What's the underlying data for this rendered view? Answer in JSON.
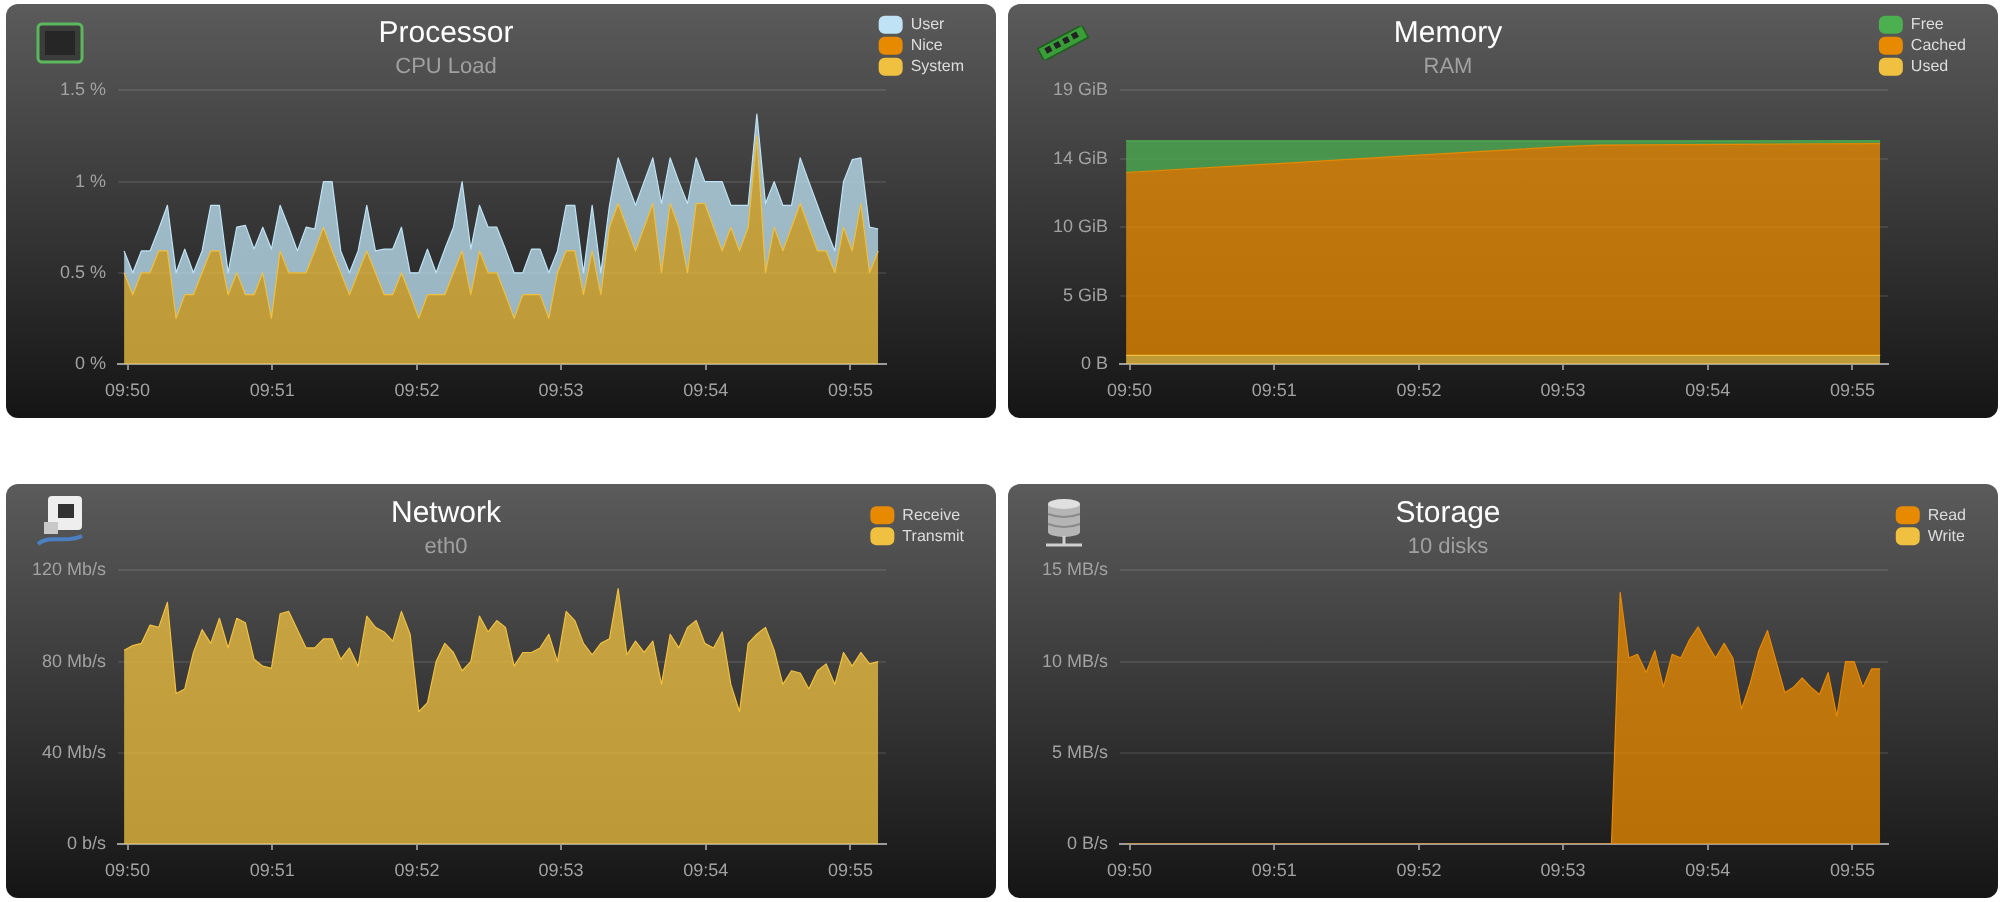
{
  "chart_data": [
    {
      "type": "area",
      "title": "Processor",
      "subtitle": "CPU Load",
      "stacked": true,
      "legend": "top right",
      "grid": "y",
      "x": [
        9.8329,
        9.8339,
        9.8349,
        9.8359,
        9.8369,
        9.8379,
        9.8389,
        9.8399,
        9.8409,
        9.8419,
        9.8429,
        9.8439,
        9.8449,
        9.8459,
        9.8469,
        9.8479,
        9.8489,
        9.8499,
        9.8509,
        9.8519,
        9.8529,
        9.8539,
        9.8549,
        9.8559,
        9.8569,
        9.8579,
        9.8589,
        9.8599,
        9.8609,
        9.8619,
        9.8629,
        9.8639,
        9.8649,
        9.8659,
        9.8669,
        9.8679,
        9.8689,
        9.8699,
        9.8709,
        9.8719,
        9.8729,
        9.8739,
        9.8749,
        9.8759,
        9.8769,
        9.8779,
        9.8789,
        9.8799,
        9.8809,
        9.8819,
        9.8829,
        9.8839,
        9.8849,
        9.8859,
        9.8869,
        9.8879,
        9.8889,
        9.8899,
        9.8909,
        9.8919,
        9.8929,
        9.8939,
        9.8949,
        9.8959,
        9.8969,
        9.8979,
        9.8989,
        9.8999,
        9.9009,
        9.9019,
        9.9029,
        9.9039,
        9.9049,
        9.9059,
        9.9069,
        9.9079,
        9.9089,
        9.9099,
        9.9109,
        9.9119,
        9.9129,
        9.9139,
        9.9149,
        9.9159,
        9.9169,
        9.9179,
        9.9189,
        9.9199
      ],
      "xlim": [
        9.8322,
        9.9208
      ],
      "xticks": [
        {
          "value": 9.8333,
          "label": "09:50"
        },
        {
          "value": 9.85,
          "label": "09:51"
        },
        {
          "value": 9.8667,
          "label": "09:52"
        },
        {
          "value": 9.8833,
          "label": "09:53"
        },
        {
          "value": 9.9,
          "label": "09:54"
        },
        {
          "value": 9.9167,
          "label": "09:55"
        }
      ],
      "ylim": [
        0,
        1.5
      ],
      "yticks": [
        {
          "value": 0,
          "label": "0 %"
        },
        {
          "value": 0.5,
          "label": "0.5 %"
        },
        {
          "value": 1,
          "label": "1 %"
        },
        {
          "value": 1.5,
          "label": "1.5 %"
        }
      ],
      "series": [
        {
          "name": "System",
          "color": "#f0c040",
          "values": [
            0.5,
            0.38,
            0.5,
            0.5,
            0.62,
            0.62,
            0.25,
            0.38,
            0.38,
            0.5,
            0.62,
            0.62,
            0.38,
            0.5,
            0.38,
            0.38,
            0.5,
            0.25,
            0.62,
            0.5,
            0.5,
            0.5,
            0.62,
            0.75,
            0.62,
            0.5,
            0.38,
            0.5,
            0.62,
            0.5,
            0.38,
            0.38,
            0.5,
            0.38,
            0.25,
            0.38,
            0.38,
            0.38,
            0.5,
            0.62,
            0.38,
            0.62,
            0.5,
            0.5,
            0.38,
            0.25,
            0.38,
            0.38,
            0.38,
            0.25,
            0.5,
            0.62,
            0.62,
            0.38,
            0.62,
            0.38,
            0.75,
            0.88,
            0.75,
            0.62,
            0.75,
            0.88,
            0.5,
            0.88,
            0.75,
            0.5,
            0.88,
            0.88,
            0.75,
            0.62,
            0.75,
            0.62,
            0.75,
            1.25,
            0.5,
            0.75,
            0.62,
            0.75,
            0.88,
            0.75,
            0.62,
            0.62,
            0.5,
            0.75,
            0.62,
            0.88,
            0.5,
            0.62
          ]
        },
        {
          "name": "Nice",
          "color": "#e88a00",
          "values": [
            null,
            null,
            null,
            null,
            null,
            null,
            null,
            null,
            null,
            null,
            null,
            null,
            null,
            null,
            null,
            null,
            null,
            null,
            null,
            null,
            null,
            null,
            null,
            null,
            null,
            null,
            null,
            null,
            null,
            null,
            null,
            null,
            null,
            null,
            null,
            null,
            null,
            null,
            null,
            null,
            null,
            null,
            null,
            null,
            null,
            null,
            null,
            null,
            null,
            null,
            null,
            null,
            null,
            null,
            null,
            null,
            null,
            null,
            null,
            null,
            null,
            null,
            null,
            null,
            null,
            null,
            null,
            null,
            null,
            null,
            null,
            null,
            null,
            null,
            null,
            null,
            null,
            null,
            null,
            null,
            null,
            null,
            null,
            null,
            null,
            null,
            null,
            null
          ]
        },
        {
          "name": "User",
          "color": "#bfe3f5",
          "values": [
            0.12,
            0.12,
            0.12,
            0.12,
            0.12,
            0.25,
            0.25,
            0.25,
            0.12,
            0.12,
            0.25,
            0.25,
            0.12,
            0.25,
            0.38,
            0.25,
            0.25,
            0.38,
            0.25,
            0.25,
            0.12,
            0.25,
            0.12,
            0.25,
            0.38,
            0.12,
            0.12,
            0.12,
            0.25,
            0.12,
            0.25,
            0.25,
            0.25,
            0.12,
            0.25,
            0.25,
            0.12,
            0.25,
            0.25,
            0.38,
            0.25,
            0.25,
            0.25,
            0.25,
            0.25,
            0.25,
            0.12,
            0.25,
            0.25,
            0.25,
            0.12,
            0.25,
            0.25,
            0.12,
            0.25,
            0.12,
            0.12,
            0.25,
            0.25,
            0.25,
            0.25,
            0.25,
            0.38,
            0.25,
            0.25,
            0.38,
            0.25,
            0.12,
            0.25,
            0.38,
            0.12,
            0.25,
            0.12,
            0.12,
            0.38,
            0.25,
            0.25,
            0.12,
            0.25,
            0.25,
            0.25,
            0.12,
            0.12,
            0.25,
            0.5,
            0.25,
            0.25,
            0.12
          ]
        }
      ]
    },
    {
      "type": "area",
      "title": "Memory",
      "subtitle": "RAM",
      "stacked": true,
      "legend": "top right",
      "grid": "y",
      "x": [
        9.8329,
        9.85,
        9.8667,
        9.8833,
        9.8875,
        9.9199
      ],
      "xlim": [
        9.8322,
        9.9208
      ],
      "xticks": [
        {
          "value": 9.8333,
          "label": "09:50"
        },
        {
          "value": 9.85,
          "label": "09:51"
        },
        {
          "value": 9.8667,
          "label": "09:52"
        },
        {
          "value": 9.8833,
          "label": "09:53"
        },
        {
          "value": 9.9,
          "label": "09:54"
        },
        {
          "value": 9.9167,
          "label": "09:55"
        }
      ],
      "ylim": [
        0,
        19
      ],
      "yticks": [
        {
          "value": 0,
          "label": "0 B"
        },
        {
          "value": 4.75,
          "label": "5 GiB"
        },
        {
          "value": 9.5,
          "label": "10 GiB"
        },
        {
          "value": 14.25,
          "label": "14 GiB"
        },
        {
          "value": 19,
          "label": "19 GiB"
        }
      ],
      "series": [
        {
          "name": "Used",
          "color": "#f0c040",
          "values": [
            0.6,
            0.6,
            0.6,
            0.6,
            0.6,
            0.6
          ]
        },
        {
          "name": "Cached",
          "color": "#e88a00",
          "values": [
            12.7,
            13.3,
            13.9,
            14.5,
            14.6,
            14.7
          ]
        },
        {
          "name": "Free",
          "color": "#4caf50",
          "values": [
            2.2,
            1.6,
            1.0,
            0.4,
            0.3,
            0.2
          ]
        }
      ]
    },
    {
      "type": "area",
      "title": "Network",
      "subtitle": "eth0",
      "stacked": true,
      "legend": "top right",
      "grid": "y",
      "x": [
        9.8329,
        9.8339,
        9.8349,
        9.8359,
        9.8369,
        9.8379,
        9.8389,
        9.8399,
        9.8409,
        9.8419,
        9.8429,
        9.8439,
        9.8449,
        9.8459,
        9.8469,
        9.8479,
        9.8489,
        9.8499,
        9.8509,
        9.8519,
        9.8529,
        9.8539,
        9.8549,
        9.8559,
        9.8569,
        9.8579,
        9.8589,
        9.8599,
        9.8609,
        9.8619,
        9.8629,
        9.8639,
        9.8649,
        9.8659,
        9.8669,
        9.8679,
        9.8689,
        9.8699,
        9.8709,
        9.8719,
        9.8729,
        9.8739,
        9.8749,
        9.8759,
        9.8769,
        9.8779,
        9.8789,
        9.8799,
        9.8809,
        9.8819,
        9.8829,
        9.8839,
        9.8849,
        9.8859,
        9.8869,
        9.8879,
        9.8889,
        9.8899,
        9.8909,
        9.8919,
        9.8929,
        9.8939,
        9.8949,
        9.8959,
        9.8969,
        9.8979,
        9.8989,
        9.8999,
        9.9009,
        9.9019,
        9.9029,
        9.9039,
        9.9049,
        9.9059,
        9.9069,
        9.9079,
        9.9089,
        9.9099,
        9.9109,
        9.9119,
        9.9129,
        9.9139,
        9.9149,
        9.9159,
        9.9169,
        9.9179,
        9.9189,
        9.9199
      ],
      "xlim": [
        9.8322,
        9.9208
      ],
      "xticks": [
        {
          "value": 9.8333,
          "label": "09:50"
        },
        {
          "value": 9.85,
          "label": "09:51"
        },
        {
          "value": 9.8667,
          "label": "09:52"
        },
        {
          "value": 9.8833,
          "label": "09:53"
        },
        {
          "value": 9.9,
          "label": "09:54"
        },
        {
          "value": 9.9167,
          "label": "09:55"
        }
      ],
      "ylim": [
        0,
        120
      ],
      "yticks": [
        {
          "value": 0,
          "label": "0 b/s"
        },
        {
          "value": 40,
          "label": "40 Mb/s"
        },
        {
          "value": 80,
          "label": "80 Mb/s"
        },
        {
          "value": 120,
          "label": "120 Mb/s"
        }
      ],
      "series": [
        {
          "name": "Transmit",
          "color": "#f0c040",
          "values": [
            85,
            87,
            88,
            96,
            95,
            106,
            66,
            68,
            84,
            94,
            88,
            99,
            86,
            99,
            97,
            81,
            78,
            77,
            101,
            102,
            94,
            86,
            86,
            90,
            90,
            81,
            86,
            78,
            100,
            95,
            93,
            89,
            102,
            92,
            58,
            62,
            80,
            88,
            84,
            76,
            80,
            100,
            93,
            98,
            95,
            78,
            84,
            84,
            86,
            92,
            80,
            102,
            98,
            88,
            83,
            88,
            90,
            112,
            83,
            89,
            84,
            89,
            70,
            92,
            86,
            95,
            98,
            88,
            86,
            93,
            70,
            58,
            88,
            92,
            95,
            85,
            70,
            76,
            75,
            68,
            76,
            79,
            70,
            84,
            78,
            84,
            79,
            80
          ]
        },
        {
          "name": "Receive",
          "color": "#e88a00",
          "values": [
            null,
            null,
            null,
            null,
            null,
            null,
            null,
            null,
            null,
            null,
            null,
            null,
            null,
            null,
            null,
            null,
            null,
            null,
            null,
            null,
            null,
            null,
            null,
            null,
            null,
            null,
            null,
            null,
            null,
            null,
            null,
            null,
            null,
            null,
            null,
            null,
            null,
            null,
            null,
            null,
            null,
            null,
            null,
            null,
            null,
            null,
            null,
            null,
            null,
            null,
            null,
            null,
            null,
            null,
            null,
            null,
            null,
            null,
            null,
            null,
            null,
            null,
            null,
            null,
            null,
            null,
            null,
            null,
            null,
            null,
            null,
            null,
            null,
            null,
            null,
            null,
            null,
            null,
            null,
            null,
            null,
            null,
            null,
            null,
            null,
            null,
            null,
            null
          ]
        }
      ]
    },
    {
      "type": "area",
      "title": "Storage",
      "subtitle": "10 disks",
      "stacked": true,
      "legend": "top right",
      "grid": "y",
      "x": [
        9.8329,
        9.8339,
        9.8349,
        9.8359,
        9.8369,
        9.8379,
        9.8389,
        9.8399,
        9.8409,
        9.8419,
        9.8429,
        9.8439,
        9.8449,
        9.8459,
        9.8469,
        9.8479,
        9.8489,
        9.8499,
        9.8509,
        9.8519,
        9.8529,
        9.8539,
        9.8549,
        9.8559,
        9.8569,
        9.8579,
        9.8589,
        9.8599,
        9.8609,
        9.8619,
        9.8629,
        9.8639,
        9.8649,
        9.8659,
        9.8669,
        9.8679,
        9.8689,
        9.8699,
        9.8709,
        9.8719,
        9.8729,
        9.8739,
        9.8749,
        9.8759,
        9.8769,
        9.8779,
        9.8789,
        9.8799,
        9.8809,
        9.8819,
        9.8829,
        9.8839,
        9.8849,
        9.8859,
        9.8869,
        9.8879,
        9.8889,
        9.8899,
        9.8909,
        9.8919,
        9.8929,
        9.8939,
        9.8949,
        9.8959,
        9.8969,
        9.8979,
        9.8989,
        9.8999,
        9.9009,
        9.9019,
        9.9029,
        9.9039,
        9.9049,
        9.9059,
        9.9069,
        9.9079,
        9.9089,
        9.9099,
        9.9109,
        9.9119,
        9.9129,
        9.9139,
        9.9149,
        9.9159,
        9.9169,
        9.9179,
        9.9189,
        9.9199
      ],
      "xlim": [
        9.8322,
        9.9208
      ],
      "xticks": [
        {
          "value": 9.8333,
          "label": "09:50"
        },
        {
          "value": 9.85,
          "label": "09:51"
        },
        {
          "value": 9.8667,
          "label": "09:52"
        },
        {
          "value": 9.8833,
          "label": "09:53"
        },
        {
          "value": 9.9,
          "label": "09:54"
        },
        {
          "value": 9.9167,
          "label": "09:55"
        }
      ],
      "ylim": [
        0,
        15
      ],
      "yticks": [
        {
          "value": 0,
          "label": "0 B/s"
        },
        {
          "value": 5,
          "label": "5 MB/s"
        },
        {
          "value": 10,
          "label": "10 MB/s"
        },
        {
          "value": 15,
          "label": "15 MB/s"
        }
      ],
      "series": [
        {
          "name": "Write",
          "color": "#f0c040",
          "values": [
            null,
            null,
            null,
            null,
            null,
            null,
            null,
            null,
            null,
            null,
            null,
            null,
            null,
            null,
            null,
            null,
            null,
            null,
            null,
            null,
            null,
            null,
            null,
            null,
            null,
            null,
            null,
            null,
            null,
            null,
            null,
            null,
            null,
            null,
            null,
            null,
            null,
            null,
            null,
            null,
            null,
            null,
            null,
            null,
            null,
            null,
            null,
            null,
            null,
            null,
            null,
            null,
            null,
            null,
            null,
            null,
            null,
            null,
            null,
            null,
            null,
            null,
            null,
            null,
            null,
            null,
            null,
            null,
            null,
            null,
            null,
            null,
            null,
            null,
            null,
            null,
            null,
            null,
            null,
            null,
            null,
            null,
            null,
            null,
            null,
            null,
            null,
            null
          ]
        },
        {
          "name": "Read",
          "color": "#e88a00",
          "values": [
            0,
            0,
            0,
            0,
            0,
            0,
            0,
            0,
            0,
            0,
            0,
            0,
            0,
            0,
            0,
            0,
            0,
            0,
            0,
            0,
            0,
            0,
            0,
            0,
            0,
            0,
            0,
            0,
            0,
            0,
            0,
            0,
            0,
            0,
            0,
            0,
            0,
            0,
            0,
            0,
            0,
            0,
            0,
            0,
            0,
            0,
            0,
            0,
            0,
            0,
            0,
            0,
            0,
            0,
            0,
            0,
            0,
            13.8,
            10.2,
            10.4,
            9.4,
            10.6,
            8.6,
            10.4,
            10.2,
            11.2,
            11.9,
            11,
            10.2,
            11,
            10.2,
            7.4,
            8.8,
            10.6,
            11.7,
            10,
            8.3,
            8.6,
            9.1,
            8.6,
            8.2,
            9.4,
            7,
            10,
            10,
            8.6,
            9.6,
            9.6
          ]
        }
      ]
    }
  ]
}
